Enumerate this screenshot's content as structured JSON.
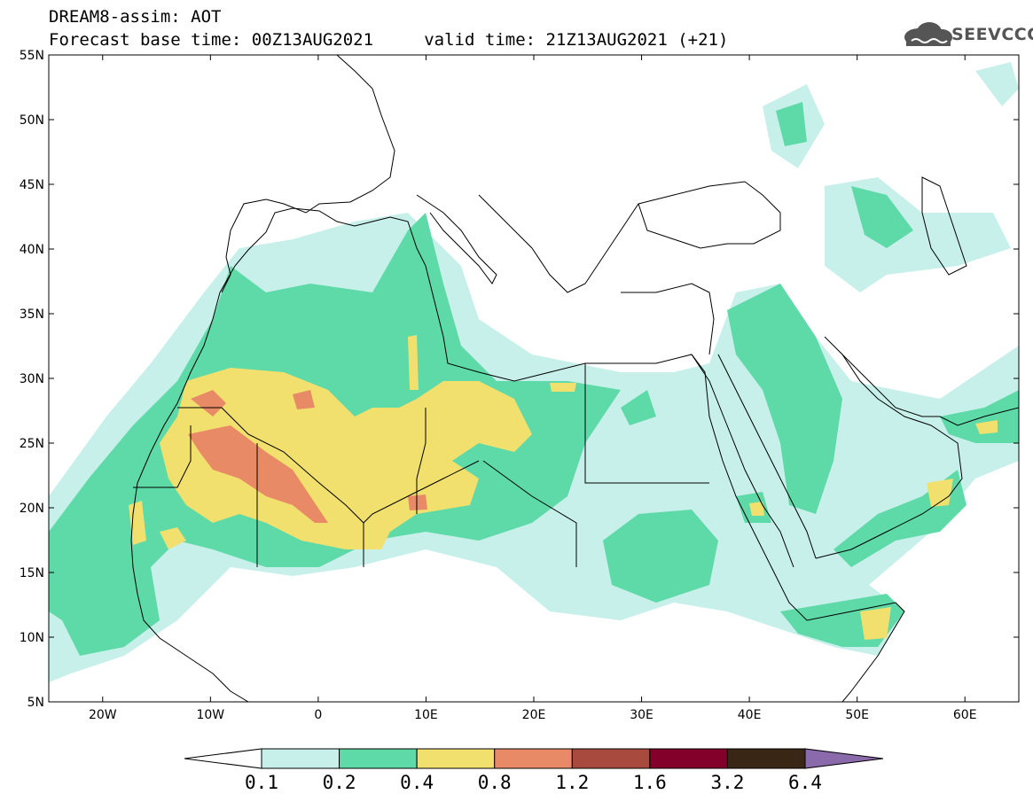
{
  "header": {
    "title_line1": "DREAM8-assim: AOT",
    "title_line2": "Forecast base time: 00Z13AUG2021     valid time: 21Z13AUG2021 (+21)",
    "logo_text": "SEEVCCC",
    "logo_icon": "cloud-icon"
  },
  "map": {
    "variable": "AOT",
    "model": "DREAM8-assim",
    "lon_range": [
      -25,
      65
    ],
    "lat_range": [
      5,
      55
    ],
    "y_ticks": [
      "55N",
      "50N",
      "45N",
      "40N",
      "35N",
      "30N",
      "25N",
      "20N",
      "15N",
      "10N",
      "5N"
    ],
    "x_ticks": [
      "20W",
      "10W",
      "0",
      "10E",
      "20E",
      "30E",
      "40E",
      "50E",
      "60E"
    ],
    "x_tick_values": [
      -20,
      -10,
      0,
      10,
      20,
      30,
      40,
      50,
      60
    ],
    "y_tick_values": [
      55,
      50,
      45,
      40,
      35,
      30,
      25,
      20,
      15,
      10,
      5
    ]
  },
  "colorbar": {
    "labels": [
      "0.1",
      "0.2",
      "0.4",
      "0.8",
      "1.2",
      "1.6",
      "3.2",
      "6.4"
    ],
    "colors": [
      "#c7f0ea",
      "#5ed9a8",
      "#f2e06e",
      "#e88a66",
      "#a84a3e",
      "#82002a",
      "#3a2614",
      "#8a6aaa"
    ],
    "under_color": "#ffffff"
  }
}
